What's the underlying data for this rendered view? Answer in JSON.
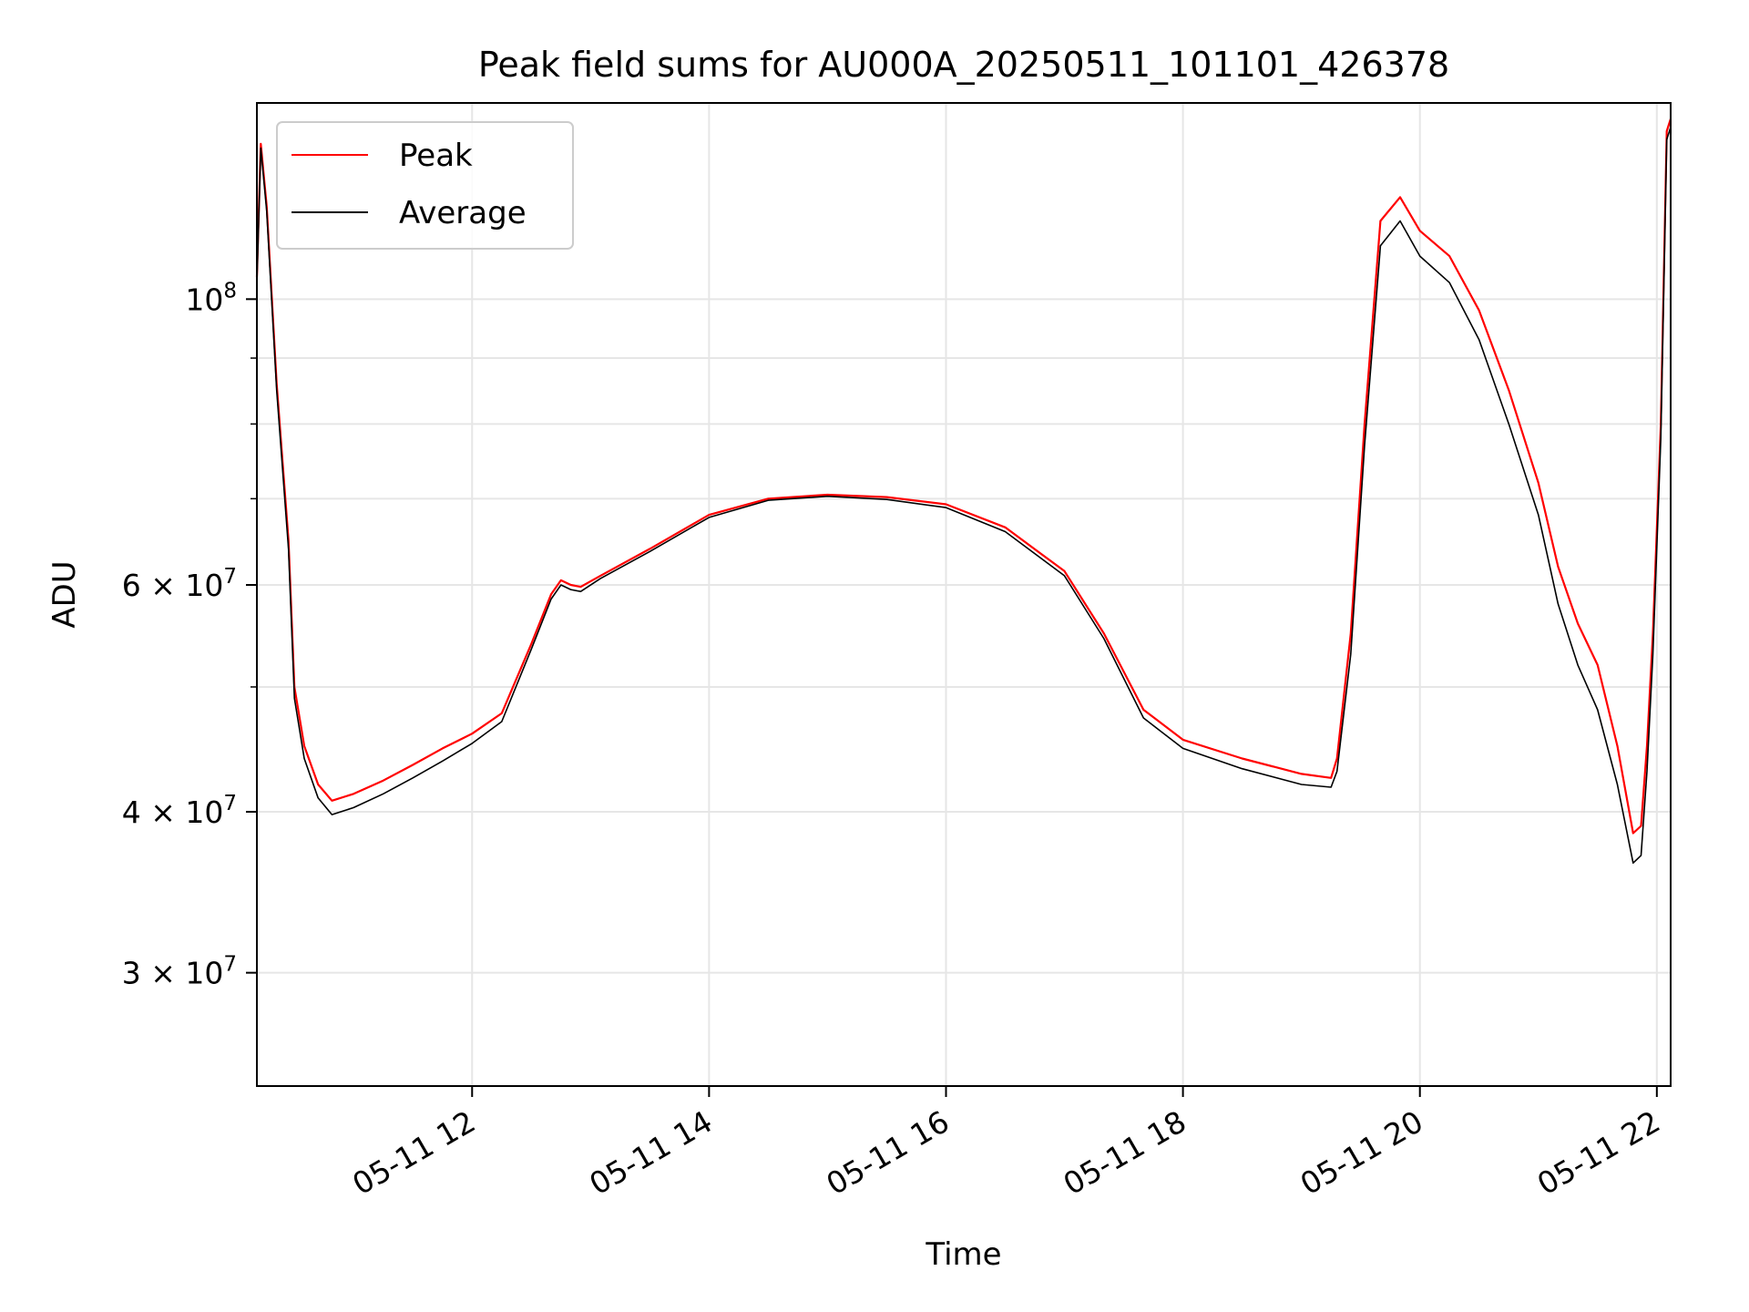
{
  "chart_data": {
    "type": "line",
    "title": "Peak field sums for AU000A_20250511_101101_426378",
    "xlabel": "Time",
    "ylabel": "ADU",
    "y_scale": "log",
    "ylim": [
      24500000,
      142000000
    ],
    "xlim": [
      "2025-05-11 10:11",
      "2025-05-11 22:07"
    ],
    "grid": true,
    "legend_position": "top-left",
    "x_ticks": [
      "05-11 12",
      "05-11 14",
      "05-11 16",
      "05-11 18",
      "05-11 20",
      "05-11 22"
    ],
    "x_tick_values": [
      "2025-05-11 12:00",
      "2025-05-11 14:00",
      "2025-05-11 16:00",
      "2025-05-11 18:00",
      "2025-05-11 20:00",
      "2025-05-11 22:00"
    ],
    "y_ticks": [
      {
        "value": 30000000,
        "mantissa": "3",
        "exp": "7"
      },
      {
        "value": 40000000,
        "mantissa": "4",
        "exp": "7"
      },
      {
        "value": 60000000,
        "mantissa": "6",
        "exp": "7"
      },
      {
        "value": 100000000,
        "mantissa": "",
        "exp": "8"
      }
    ],
    "series": [
      {
        "name": "Peak",
        "color": "#ff0000",
        "points": [
          [
            "2025-05-11 10:11",
            104000000
          ],
          [
            "2025-05-11 10:13",
            132000000
          ],
          [
            "2025-05-11 10:16",
            118000000
          ],
          [
            "2025-05-11 10:21",
            86000000
          ],
          [
            "2025-05-11 10:27",
            65000000
          ],
          [
            "2025-05-11 10:30",
            50000000
          ],
          [
            "2025-05-11 10:35",
            45000000
          ],
          [
            "2025-05-11 10:42",
            42000000
          ],
          [
            "2025-05-11 10:49",
            40800000
          ],
          [
            "2025-05-11 11:00",
            41300000
          ],
          [
            "2025-05-11 11:15",
            42300000
          ],
          [
            "2025-05-11 11:30",
            43500000
          ],
          [
            "2025-05-11 11:45",
            44800000
          ],
          [
            "2025-05-11 12:00",
            46000000
          ],
          [
            "2025-05-11 12:15",
            47700000
          ],
          [
            "2025-05-11 12:30",
            54000000
          ],
          [
            "2025-05-11 12:40",
            59000000
          ],
          [
            "2025-05-11 12:45",
            60500000
          ],
          [
            "2025-05-11 12:50",
            60000000
          ],
          [
            "2025-05-11 12:55",
            59800000
          ],
          [
            "2025-05-11 13:05",
            61000000
          ],
          [
            "2025-05-11 13:30",
            64000000
          ],
          [
            "2025-05-11 14:00",
            68000000
          ],
          [
            "2025-05-11 14:30",
            70000000
          ],
          [
            "2025-05-11 15:00",
            70500000
          ],
          [
            "2025-05-11 15:30",
            70200000
          ],
          [
            "2025-05-11 16:00",
            69300000
          ],
          [
            "2025-05-11 16:30",
            66500000
          ],
          [
            "2025-05-11 17:00",
            61500000
          ],
          [
            "2025-05-11 17:20",
            55000000
          ],
          [
            "2025-05-11 17:40",
            48000000
          ],
          [
            "2025-05-11 18:00",
            45500000
          ],
          [
            "2025-05-11 18:30",
            44000000
          ],
          [
            "2025-05-11 19:00",
            42800000
          ],
          [
            "2025-05-11 19:15",
            42500000
          ],
          [
            "2025-05-11 19:18",
            44000000
          ],
          [
            "2025-05-11 19:25",
            55000000
          ],
          [
            "2025-05-11 19:32",
            80000000
          ],
          [
            "2025-05-11 19:40",
            115000000
          ],
          [
            "2025-05-11 19:50",
            120000000
          ],
          [
            "2025-05-11 20:00",
            113000000
          ],
          [
            "2025-05-11 20:15",
            108000000
          ],
          [
            "2025-05-11 20:30",
            98000000
          ],
          [
            "2025-05-11 20:45",
            85000000
          ],
          [
            "2025-05-11 21:00",
            72000000
          ],
          [
            "2025-05-11 21:10",
            62000000
          ],
          [
            "2025-05-11 21:20",
            56000000
          ],
          [
            "2025-05-11 21:30",
            52000000
          ],
          [
            "2025-05-11 21:40",
            45000000
          ],
          [
            "2025-05-11 21:48",
            38500000
          ],
          [
            "2025-05-11 21:52",
            39000000
          ],
          [
            "2025-05-11 21:55",
            45000000
          ],
          [
            "2025-05-11 21:58",
            55000000
          ],
          [
            "2025-05-11 22:02",
            80000000
          ],
          [
            "2025-05-11 22:05",
            135000000
          ],
          [
            "2025-05-11 22:07",
            138000000
          ]
        ]
      },
      {
        "name": "Average",
        "color": "#000000",
        "points": [
          [
            "2025-05-11 10:11",
            103000000
          ],
          [
            "2025-05-11 10:13",
            131000000
          ],
          [
            "2025-05-11 10:16",
            117000000
          ],
          [
            "2025-05-11 10:21",
            85000000
          ],
          [
            "2025-05-11 10:27",
            64000000
          ],
          [
            "2025-05-11 10:30",
            49000000
          ],
          [
            "2025-05-11 10:35",
            44000000
          ],
          [
            "2025-05-11 10:42",
            41000000
          ],
          [
            "2025-05-11 10:49",
            39800000
          ],
          [
            "2025-05-11 11:00",
            40300000
          ],
          [
            "2025-05-11 11:15",
            41300000
          ],
          [
            "2025-05-11 11:30",
            42500000
          ],
          [
            "2025-05-11 11:45",
            43800000
          ],
          [
            "2025-05-11 12:00",
            45200000
          ],
          [
            "2025-05-11 12:15",
            47000000
          ],
          [
            "2025-05-11 12:30",
            53500000
          ],
          [
            "2025-05-11 12:40",
            58500000
          ],
          [
            "2025-05-11 12:45",
            60000000
          ],
          [
            "2025-05-11 12:50",
            59500000
          ],
          [
            "2025-05-11 12:55",
            59300000
          ],
          [
            "2025-05-11 13:05",
            60700000
          ],
          [
            "2025-05-11 13:30",
            63700000
          ],
          [
            "2025-05-11 14:00",
            67700000
          ],
          [
            "2025-05-11 14:30",
            69800000
          ],
          [
            "2025-05-11 15:00",
            70300000
          ],
          [
            "2025-05-11 15:30",
            69900000
          ],
          [
            "2025-05-11 16:00",
            68900000
          ],
          [
            "2025-05-11 16:30",
            66000000
          ],
          [
            "2025-05-11 17:00",
            61000000
          ],
          [
            "2025-05-11 17:20",
            54500000
          ],
          [
            "2025-05-11 17:40",
            47300000
          ],
          [
            "2025-05-11 18:00",
            44800000
          ],
          [
            "2025-05-11 18:30",
            43200000
          ],
          [
            "2025-05-11 19:00",
            42000000
          ],
          [
            "2025-05-11 19:15",
            41800000
          ],
          [
            "2025-05-11 19:18",
            43000000
          ],
          [
            "2025-05-11 19:25",
            53000000
          ],
          [
            "2025-05-11 19:32",
            77000000
          ],
          [
            "2025-05-11 19:40",
            110000000
          ],
          [
            "2025-05-11 19:50",
            115000000
          ],
          [
            "2025-05-11 20:00",
            108000000
          ],
          [
            "2025-05-11 20:15",
            103000000
          ],
          [
            "2025-05-11 20:30",
            93000000
          ],
          [
            "2025-05-11 20:45",
            80000000
          ],
          [
            "2025-05-11 21:00",
            68000000
          ],
          [
            "2025-05-11 21:10",
            58000000
          ],
          [
            "2025-05-11 21:20",
            52000000
          ],
          [
            "2025-05-11 21:30",
            48000000
          ],
          [
            "2025-05-11 21:40",
            42000000
          ],
          [
            "2025-05-11 21:48",
            36500000
          ],
          [
            "2025-05-11 21:52",
            37000000
          ],
          [
            "2025-05-11 21:55",
            43000000
          ],
          [
            "2025-05-11 21:58",
            53000000
          ],
          [
            "2025-05-11 22:02",
            78000000
          ],
          [
            "2025-05-11 22:05",
            133000000
          ],
          [
            "2025-05-11 22:07",
            136000000
          ]
        ]
      }
    ]
  }
}
